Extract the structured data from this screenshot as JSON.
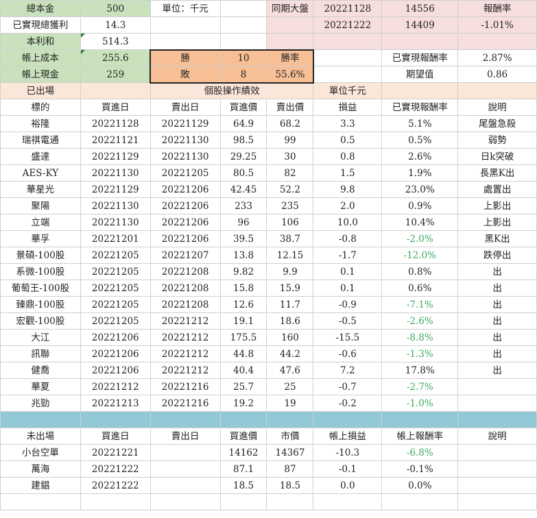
{
  "summary": {
    "principal": {
      "label": "總本金",
      "value": "500"
    },
    "unit": "單位：千元",
    "realized_profit": {
      "label": "已實現總獲利",
      "value": "14.3"
    },
    "principal_plus_profit": {
      "label": "本利和",
      "value": "514.3"
    },
    "book_cost": {
      "label": "帳上成本",
      "value": "255.6"
    },
    "book_cash": {
      "label": "帳上現金",
      "value": "259"
    }
  },
  "market": {
    "label": "同期大盤",
    "header_label": "報酬率",
    "rows": [
      {
        "date": "20221128",
        "index": "14556",
        "return": ""
      },
      {
        "date": "20221222",
        "index": "14409",
        "return": "-1.01%"
      }
    ]
  },
  "winloss": {
    "win_label": "勝",
    "wins": "10",
    "loss_label": "敗",
    "losses": "8",
    "rate_label": "勝率",
    "rate": "55.6%"
  },
  "stats": {
    "realized_return_label": "已實現報酬率",
    "realized_return": "2.87%",
    "expectancy_label": "期望值",
    "expectancy": "0.86"
  },
  "exited": {
    "section_label": "已出場",
    "title": "個股操作績效",
    "unit": "單位千元",
    "headers": [
      "標的",
      "買進日",
      "賣出日",
      "買進價",
      "賣出價",
      "損益",
      "已實現報酬率",
      "說明"
    ],
    "rows": [
      [
        "裕隆",
        "20221128",
        "20221129",
        "64.9",
        "68.2",
        "3.3",
        "5.1%",
        "尾盤急殺"
      ],
      [
        "瑞祺電通",
        "20221121",
        "20221130",
        "98.5",
        "99",
        "0.5",
        "0.5%",
        "弱勢"
      ],
      [
        "盛達",
        "20221129",
        "20221130",
        "29.25",
        "30",
        "0.8",
        "2.6%",
        "日k突破"
      ],
      [
        "AES-KY",
        "20221130",
        "20221205",
        "80.5",
        "82",
        "1.5",
        "1.9%",
        "長黑K出"
      ],
      [
        "華星光",
        "20221129",
        "20221206",
        "42.45",
        "52.2",
        "9.8",
        "23.0%",
        "處置出"
      ],
      [
        "聚陽",
        "20221130",
        "20221206",
        "233",
        "235",
        "2.0",
        "0.9%",
        "上影出"
      ],
      [
        "立端",
        "20221130",
        "20221206",
        "96",
        "106",
        "10.0",
        "10.4%",
        "上影出"
      ],
      [
        "華孚",
        "20221201",
        "20221206",
        "39.5",
        "38.7",
        "-0.8",
        "-2.0%",
        "黑K出"
      ],
      [
        "景碩-100股",
        "20221205",
        "20221207",
        "13.8",
        "12.15",
        "-1.7",
        "-12.0%",
        "跌停出"
      ],
      [
        "系微-100股",
        "20221205",
        "20221208",
        "9.82",
        "9.9",
        "0.1",
        "0.8%",
        "出"
      ],
      [
        "葡萄王-100股",
        "20221205",
        "20221208",
        "15.8",
        "15.9",
        "0.1",
        "0.6%",
        "出"
      ],
      [
        "臻鼎-100股",
        "20221205",
        "20221208",
        "12.6",
        "11.7",
        "-0.9",
        "-7.1%",
        "出"
      ],
      [
        "宏觀-100股",
        "20221205",
        "20221212",
        "19.1",
        "18.6",
        "-0.5",
        "-2.6%",
        "出"
      ],
      [
        "大江",
        "20221206",
        "20221212",
        "175.5",
        "160",
        "-15.5",
        "-8.8%",
        "出"
      ],
      [
        "訊聯",
        "20221206",
        "20221212",
        "44.8",
        "44.2",
        "-0.6",
        "-1.3%",
        "出"
      ],
      [
        "健喬",
        "20221206",
        "20221212",
        "40.4",
        "47.6",
        "7.2",
        "17.8%",
        "出"
      ],
      [
        "華夏",
        "20221212",
        "20221216",
        "25.7",
        "25",
        "-0.7",
        "-2.7%",
        ""
      ],
      [
        "兆勁",
        "20221213",
        "20221216",
        "19.2",
        "19",
        "-0.2",
        "-1.0%",
        ""
      ]
    ]
  },
  "open": {
    "headers": [
      "未出場",
      "買進日",
      "賣出日",
      "買進價",
      "市價",
      "帳上損益",
      "帳上報酬率",
      "說明"
    ],
    "rows": [
      [
        "小台空單",
        "20221221",
        "",
        "14162",
        "14367",
        "-10.3",
        "-6.8%",
        ""
      ],
      [
        "萬海",
        "20221222",
        "",
        "87.1",
        "87",
        "-0.1",
        "-0.1%",
        ""
      ],
      [
        "建錩",
        "20221222",
        "",
        "18.5",
        "18.5",
        "0.0",
        "0.0%",
        ""
      ]
    ]
  },
  "colors": {
    "green_cell": "#c9e2bd",
    "orange_cell": "#f7bf95",
    "pink_cell": "#f6dede",
    "peach_cell": "#fbe7d9",
    "teal_separator": "#93c8d6",
    "negative_text": "#3ba95e"
  }
}
